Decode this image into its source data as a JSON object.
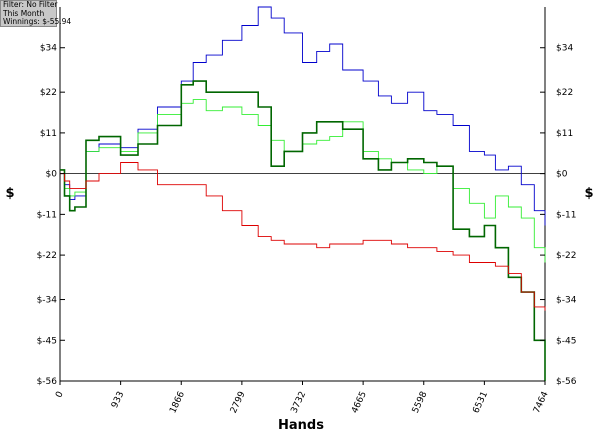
{
  "info_box": {
    "filter": "Filter: No Filter",
    "period": "This Month",
    "winnings": "Winnings: $-55.94"
  },
  "chart_data": {
    "type": "line",
    "xlabel": "Hands",
    "ylabel": "$",
    "xlim": [
      0,
      7464
    ],
    "ylim": [
      -56,
      45
    ],
    "x_ticks": [
      0,
      933,
      1866,
      2799,
      3732,
      4665,
      5598,
      6531,
      7464
    ],
    "x_tick_labels": [
      "0",
      "933",
      "1866",
      "2799",
      "3732",
      "4665",
      "5598",
      "6531",
      "7464"
    ],
    "y_ticks": [
      34,
      22,
      11,
      0,
      -11,
      -22,
      -34,
      -45,
      -56
    ],
    "y_tick_labels": [
      "$34",
      "$22",
      "$11",
      "$0",
      "$-11",
      "$-22",
      "$-34",
      "$-45",
      "$-56"
    ],
    "grid": false,
    "zero_line": true,
    "series": [
      {
        "color": "#0000cc",
        "x": [
          0,
          70,
          150,
          230,
          400,
          600,
          933,
          1200,
          1500,
          1866,
          2050,
          2250,
          2500,
          2799,
          3050,
          3250,
          3450,
          3732,
          3950,
          4150,
          4350,
          4665,
          4900,
          5100,
          5350,
          5598,
          5800,
          6050,
          6300,
          6531,
          6700,
          6900,
          7100,
          7300,
          7464
        ],
        "y": [
          1,
          -3,
          -7,
          -6,
          6,
          8,
          7,
          12,
          18,
          25,
          30,
          32,
          36,
          40,
          45,
          42,
          38,
          30,
          33,
          35,
          28,
          25,
          21,
          19,
          22,
          17,
          16,
          13,
          6,
          5,
          1,
          2,
          -3,
          -10,
          -14
        ]
      },
      {
        "color": "#33ee33",
        "x": [
          0,
          70,
          150,
          230,
          400,
          600,
          933,
          1200,
          1500,
          1866,
          2050,
          2250,
          2500,
          2799,
          3050,
          3250,
          3450,
          3732,
          3950,
          4150,
          4350,
          4665,
          4900,
          5100,
          5350,
          5598,
          5800,
          6050,
          6300,
          6531,
          6700,
          6900,
          7100,
          7300,
          7464
        ],
        "y": [
          0,
          -4,
          -6,
          -5,
          6,
          7,
          6,
          11,
          16,
          19,
          20,
          17,
          18,
          16,
          13,
          9,
          6,
          8,
          9,
          10,
          14,
          6,
          4,
          3,
          1,
          0,
          2,
          -4,
          -8,
          -12,
          -6,
          -9,
          -12,
          -20,
          -24
        ]
      },
      {
        "color": "#006600",
        "x": [
          0,
          70,
          150,
          230,
          400,
          600,
          933,
          1200,
          1500,
          1866,
          2050,
          2250,
          2500,
          2799,
          3050,
          3250,
          3450,
          3732,
          3950,
          4150,
          4350,
          4665,
          4900,
          5100,
          5350,
          5598,
          5800,
          6050,
          6300,
          6531,
          6700,
          6900,
          7100,
          7300,
          7464
        ],
        "y": [
          1,
          -6,
          -10,
          -9,
          9,
          10,
          5,
          8,
          13,
          24,
          25,
          22,
          22,
          22,
          18,
          2,
          6,
          11,
          14,
          14,
          12,
          4,
          1,
          3,
          4,
          3,
          2,
          -15,
          -17,
          -14,
          -20,
          -28,
          -32,
          -45,
          -56
        ]
      },
      {
        "color": "#dd0000",
        "x": [
          0,
          70,
          150,
          230,
          400,
          600,
          933,
          1200,
          1500,
          1866,
          2050,
          2250,
          2500,
          2799,
          3050,
          3250,
          3450,
          3732,
          3950,
          4150,
          4350,
          4665,
          4900,
          5100,
          5350,
          5598,
          5800,
          6050,
          6300,
          6531,
          6700,
          6900,
          7100,
          7300,
          7464
        ],
        "y": [
          0,
          -2,
          -4,
          -4,
          -2,
          0,
          3,
          1,
          -3,
          -3,
          -3,
          -6,
          -10,
          -14,
          -17,
          -18,
          -19,
          -19,
          -20,
          -19,
          -19,
          -18,
          -18,
          -19,
          -20,
          -20,
          -21,
          -22,
          -24,
          -24,
          -25,
          -27,
          -32,
          -36,
          -37
        ]
      }
    ]
  }
}
